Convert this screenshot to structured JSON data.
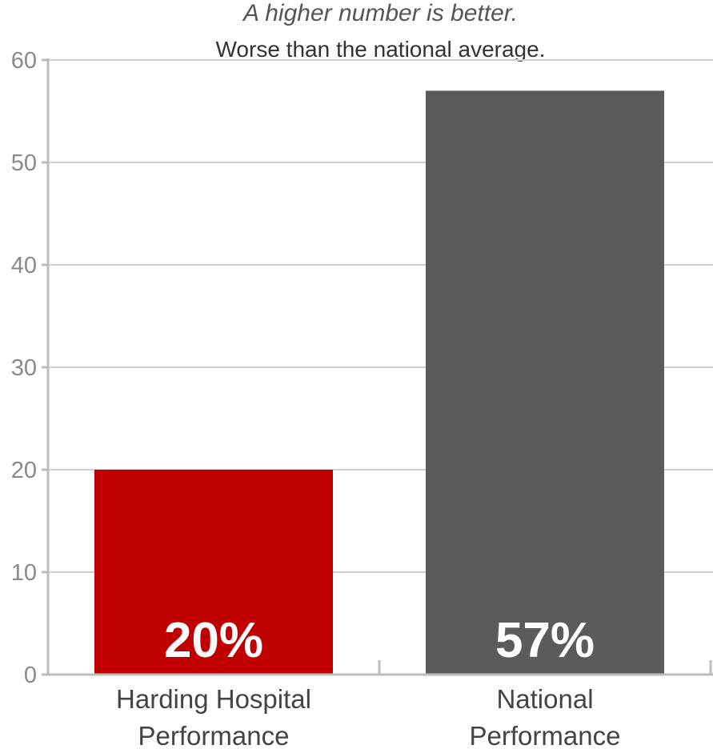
{
  "notes": {
    "top": "A higher number is better.",
    "sub": "Worse than the national average."
  },
  "colors": {
    "hospital": "#c00000",
    "national": "#5b5b5b",
    "grid": "#cfcfcf",
    "axis": "#bdbdbd"
  },
  "chart_data": {
    "type": "bar",
    "categories": [
      [
        "Harding Hospital",
        "Performance"
      ],
      [
        "National",
        "Performance"
      ]
    ],
    "values": [
      20,
      57
    ],
    "data_labels": [
      "20%",
      "57%"
    ],
    "bar_colors": [
      "#c00000",
      "#5b5b5b"
    ],
    "title": "",
    "xlabel": "",
    "ylabel": "",
    "ylim": [
      0,
      60
    ],
    "yticks": [
      0,
      10,
      20,
      30,
      40,
      50,
      60
    ],
    "grid": true,
    "legend": "none"
  }
}
